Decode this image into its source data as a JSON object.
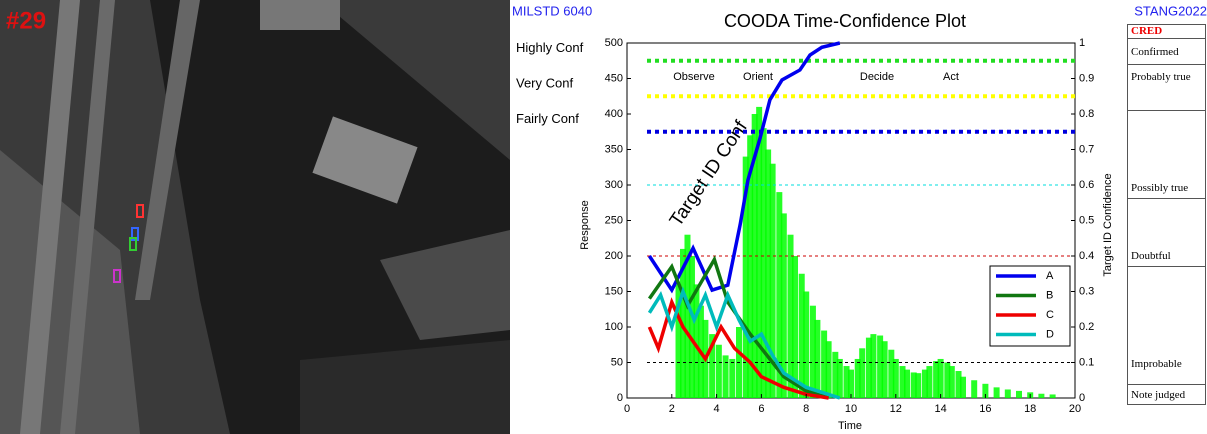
{
  "image_label": "#29",
  "header_left": "MILSTD 6040",
  "header_right": "STANG2022",
  "cred_table": {
    "header": "CRED",
    "rows": [
      "Confirmed",
      "Probably true",
      "Possibly true",
      "Doubtful",
      "Improbable",
      "Note judged"
    ]
  },
  "chart_data": {
    "type": "line",
    "title": "COODA Time-Confidence Plot",
    "xlabel": "Time",
    "ylabel": "Response",
    "y2label": "Target ID Confidence",
    "xlim": [
      0,
      20
    ],
    "xticks": [
      0,
      2,
      4,
      6,
      8,
      10,
      12,
      14,
      16,
      18,
      20
    ],
    "ylim": [
      0,
      500
    ],
    "yticks": [
      0,
      50,
      100,
      150,
      200,
      250,
      300,
      350,
      400,
      450,
      500
    ],
    "y2lim": [
      0,
      1
    ],
    "y2ticks": [
      0,
      0.1,
      0.2,
      0.3,
      0.4,
      0.5,
      0.6,
      0.7,
      0.8,
      0.9,
      1
    ],
    "legend": "lower right",
    "annotations": [
      "Observe",
      "Orient",
      "Decide",
      "Act",
      "Target ID Conf"
    ],
    "ref_lines": [
      {
        "value": 475,
        "label": "Highly Conf",
        "color": "#22dd22",
        "style": "thick-dotted"
      },
      {
        "value": 425,
        "label": "Very Conf",
        "color": "#ffff00",
        "style": "thick-dotted"
      },
      {
        "value": 375,
        "label": "Fairly Conf",
        "color": "#0000dd",
        "style": "thick-dotted"
      },
      {
        "value": 300,
        "color": "#00dddd",
        "style": "dashed"
      },
      {
        "value": 200,
        "color": "#cc0000",
        "style": "dashed"
      },
      {
        "value": 50,
        "color": "#000000",
        "style": "dashed"
      }
    ],
    "response": {
      "color": "#00ff00",
      "x": [
        2.3,
        2.5,
        2.7,
        2.9,
        3.1,
        3.3,
        3.5,
        3.8,
        4.1,
        4.4,
        4.7,
        5,
        5.3,
        5.5,
        5.7,
        5.9,
        6.1,
        6.3,
        6.5,
        6.8,
        7,
        7.3,
        7.5,
        7.8,
        8,
        8.3,
        8.5,
        8.8,
        9,
        9.3,
        9.5,
        9.8,
        10,
        10.3,
        10.5,
        10.8,
        11,
        11.3,
        11.5,
        11.8,
        12,
        12.3,
        12.5,
        12.8,
        13,
        13.3,
        13.5,
        13.8,
        14,
        14.3,
        14.5,
        14.8,
        15,
        15.5,
        16,
        16.5,
        17,
        17.5,
        18,
        18.5,
        19
      ],
      "values": [
        160,
        210,
        230,
        200,
        160,
        130,
        110,
        90,
        75,
        60,
        55,
        100,
        340,
        370,
        400,
        410,
        380,
        350,
        330,
        290,
        260,
        230,
        200,
        175,
        150,
        130,
        110,
        95,
        80,
        65,
        55,
        45,
        40,
        55,
        70,
        85,
        90,
        88,
        80,
        68,
        55,
        45,
        40,
        36,
        35,
        40,
        45,
        52,
        55,
        50,
        45,
        38,
        30,
        25,
        20,
        15,
        12,
        10,
        8,
        6,
        5
      ]
    },
    "series": [
      {
        "name": "A",
        "color": "#0000ee",
        "x": [
          1,
          2,
          2.95,
          3.8,
          4.5,
          5.05,
          5.4,
          5.94,
          6.38,
          6.92,
          7.72,
          8.17,
          8.7,
          9.5
        ],
        "values": [
          200,
          152,
          211,
          152,
          159,
          244,
          307,
          366,
          420,
          448,
          462,
          483,
          494,
          500
        ]
      },
      {
        "name": "B",
        "color": "#117711",
        "x": [
          1,
          2,
          2.7,
          3.9,
          4.5,
          5.5,
          6,
          6.5,
          7,
          8,
          9
        ],
        "values": [
          140,
          185,
          130,
          195,
          135,
          90,
          70,
          50,
          30,
          10,
          0
        ]
      },
      {
        "name": "C",
        "color": "#ee0000",
        "x": [
          1,
          1.4,
          2,
          2.5,
          3.5,
          4.2,
          4.8,
          5.5,
          6,
          7,
          8,
          9
        ],
        "values": [
          100,
          70,
          135,
          100,
          55,
          100,
          70,
          50,
          30,
          15,
          5,
          0
        ]
      },
      {
        "name": "D",
        "color": "#00bbbb",
        "x": [
          1,
          1.5,
          2,
          2.5,
          3,
          3.5,
          4,
          4.5,
          5,
          5.5,
          6,
          6.5,
          7,
          8,
          9,
          9.5
        ],
        "values": [
          120,
          145,
          100,
          150,
          110,
          145,
          100,
          145,
          110,
          80,
          90,
          60,
          35,
          15,
          5,
          0
        ]
      }
    ]
  }
}
